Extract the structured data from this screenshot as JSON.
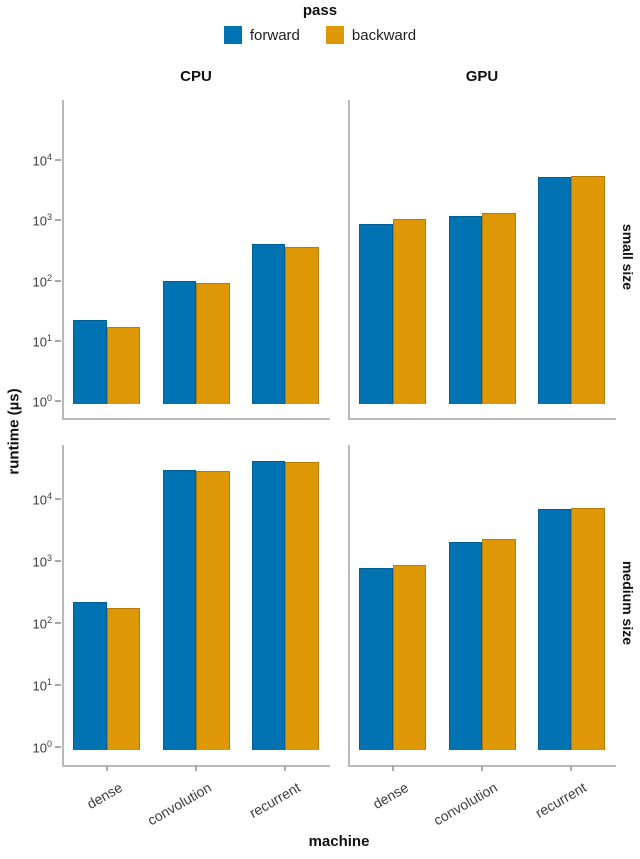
{
  "chart_data": {
    "type": "bar",
    "faceted": true,
    "legend": {
      "title": "pass",
      "entries": [
        "forward",
        "backward"
      ]
    },
    "colors": {
      "forward": "#0173b2",
      "backward": "#de9705"
    },
    "facet_cols": [
      "CPU",
      "GPU"
    ],
    "facet_rows": [
      "small size",
      "medium size"
    ],
    "categories": [
      "dense",
      "convolution",
      "recurrent"
    ],
    "xlabel": "machine",
    "ylabel": "runtime (µs)",
    "yscale": "log",
    "ytick_exponents": [
      0,
      1,
      2,
      3,
      4
    ],
    "ylim": [
      1,
      100000
    ],
    "grid": false,
    "legend_position": "top-center",
    "panels": [
      {
        "row": "small size",
        "col": "CPU",
        "series": [
          {
            "name": "forward",
            "values": [
              22,
              100,
              400
            ]
          },
          {
            "name": "backward",
            "values": [
              17,
              92,
              360
            ]
          }
        ]
      },
      {
        "row": "small size",
        "col": "GPU",
        "series": [
          {
            "name": "forward",
            "values": [
              880,
              1200,
              5300
            ]
          },
          {
            "name": "backward",
            "values": [
              1050,
              1350,
              5500
            ]
          }
        ]
      },
      {
        "row": "medium size",
        "col": "CPU",
        "series": [
          {
            "name": "forward",
            "values": [
              220,
              29000,
              41000
            ]
          },
          {
            "name": "backward",
            "values": [
              175,
              28000,
              40000
            ]
          }
        ]
      },
      {
        "row": "medium size",
        "col": "GPU",
        "series": [
          {
            "name": "forward",
            "values": [
              780,
              2000,
              7000
            ]
          },
          {
            "name": "backward",
            "values": [
              860,
              2250,
              7100
            ]
          }
        ]
      }
    ]
  }
}
